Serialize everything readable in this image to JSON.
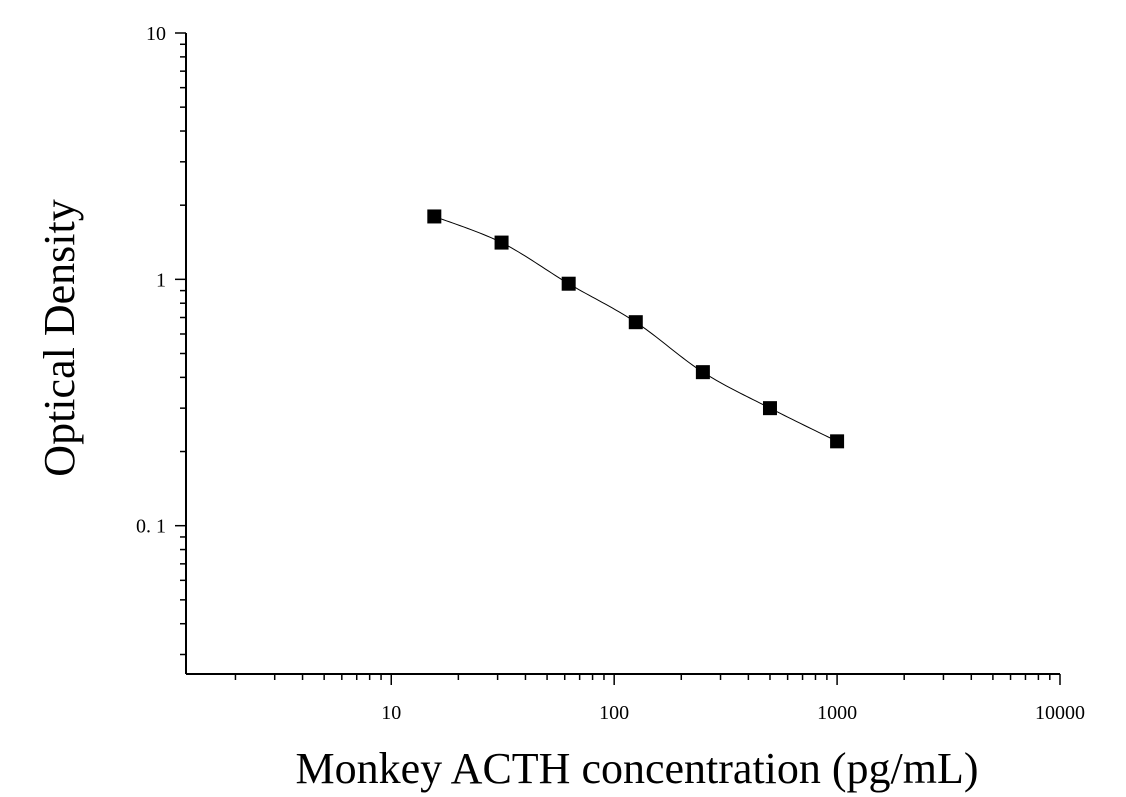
{
  "chart_data": {
    "type": "scatter",
    "title": "",
    "xlabel": "Monkey ACTH concentration (pg/mL)",
    "ylabel": "Optical Density",
    "x_scale": "log",
    "y_scale": "log",
    "xlim": [
      1.2,
      10000
    ],
    "ylim": [
      0.025,
      10
    ],
    "x_ticks": [
      {
        "value": 10,
        "label": "10"
      },
      {
        "value": 100,
        "label": "100"
      },
      {
        "value": 1000,
        "label": "1000"
      },
      {
        "value": 10000,
        "label": "10000"
      }
    ],
    "y_ticks": [
      {
        "value": 0.1,
        "label": "0. 1"
      },
      {
        "value": 1,
        "label": "1"
      },
      {
        "value": 10,
        "label": "10"
      }
    ],
    "grid": false,
    "legend": "none",
    "series": [
      {
        "marker": "square",
        "color": "#000000",
        "fit_line": true,
        "x": [
          15.6,
          31.25,
          62.5,
          125,
          250,
          500,
          1000
        ],
        "y": [
          1.8,
          1.41,
          0.96,
          0.67,
          0.42,
          0.3,
          0.22
        ]
      }
    ]
  }
}
